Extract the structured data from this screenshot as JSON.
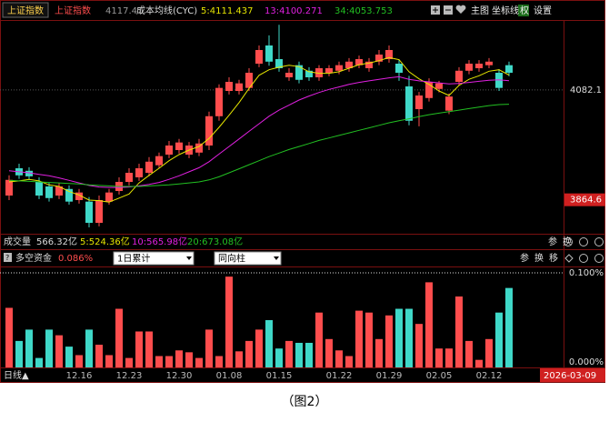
{
  "toolbar": {
    "tag": "上证指数",
    "name": "上证指数",
    "price": 4117.41,
    "buttons": [
      "主图",
      "坐标线",
      "权",
      "设置"
    ]
  },
  "volume_header": {
    "title": "成交量",
    "items": [
      "566.32亿",
      "5:524.36亿",
      "10:565.98亿",
      "20:673.08亿"
    ],
    "tools": [
      "参",
      "换"
    ]
  },
  "money_header": {
    "controls": [
      "1日累计",
      "同向柱"
    ],
    "tools": [
      "参",
      "换",
      "移"
    ]
  },
  "date_axis": {
    "period": "日线▲",
    "end_date": "2026-03-09"
  },
  "caption": "（图2）",
  "chart_data": [
    {
      "type": "candlestick",
      "title": "成本均线(CYC)",
      "up_color": "#ff4d4d",
      "down_color": "#3fd8c8",
      "categories": [
        null,
        null,
        null,
        null,
        null,
        null,
        null,
        "12.16",
        null,
        null,
        null,
        null,
        "12.23",
        null,
        null,
        null,
        null,
        "12.30",
        null,
        null,
        null,
        null,
        "01.08",
        null,
        null,
        null,
        null,
        "01.15",
        null,
        null,
        null,
        null,
        null,
        "01.22",
        null,
        null,
        null,
        null,
        "01.29",
        null,
        null,
        null,
        null,
        "02.05",
        null,
        null,
        null,
        null,
        "02.12",
        null,
        null
      ],
      "open": [
        3873,
        3927,
        3922,
        3900,
        3891,
        3873,
        3886,
        3864,
        3861,
        3819,
        3861,
        3882,
        3900,
        3909,
        3918,
        3933,
        3954,
        3963,
        3954,
        3958,
        3972,
        4030,
        4080,
        4080,
        4086,
        4134,
        4170,
        4143,
        4107,
        4131,
        4120,
        4107,
        4116,
        4120,
        4125,
        4131,
        4125,
        4138,
        4143,
        4134,
        4089,
        4044,
        4066,
        4084,
        4041,
        4098,
        4120,
        4125,
        4131,
        4116,
        4131
      ],
      "high": [
        3913,
        3936,
        3929,
        3909,
        3898,
        3898,
        3893,
        3886,
        3870,
        3873,
        3886,
        3909,
        3927,
        3936,
        3949,
        3958,
        3981,
        3985,
        3979,
        3985,
        4039,
        4093,
        4107,
        4102,
        4125,
        4170,
        4190,
        4211,
        4125,
        4138,
        4127,
        4131,
        4131,
        4138,
        4145,
        4150,
        4145,
        4161,
        4170,
        4141,
        4110,
        4078,
        4105,
        4100,
        4075,
        4127,
        4141,
        4141,
        4145,
        4123,
        4138
      ],
      "low": [
        3864,
        3906,
        3904,
        3866,
        3861,
        3866,
        3855,
        3857,
        3810,
        3812,
        3855,
        3875,
        3893,
        3902,
        3911,
        3927,
        3947,
        3956,
        3947,
        3951,
        3963,
        4021,
        4073,
        4073,
        4080,
        4127,
        4130,
        4118,
        4100,
        4095,
        4100,
        4100,
        4109,
        4113,
        4118,
        4125,
        4118,
        4131,
        4136,
        4100,
        4012,
        4010,
        4059,
        4077,
        4034,
        4091,
        4113,
        4118,
        4125,
        4080,
        4109
      ],
      "close": [
        3904,
        3913,
        3911,
        3873,
        3868,
        3891,
        3861,
        3879,
        3819,
        3864,
        3879,
        3900,
        3918,
        3927,
        3940,
        3951,
        3972,
        3978,
        3972,
        3976,
        4030,
        4086,
        4098,
        4095,
        4116,
        4161,
        4138,
        4125,
        4116,
        4102,
        4107,
        4125,
        4125,
        4131,
        4138,
        4143,
        4138,
        4152,
        4161,
        4116,
        4021,
        4071,
        4098,
        4095,
        4069,
        4120,
        4134,
        4134,
        4138,
        4086,
        4116
      ],
      "series": [
        {
          "name": "5:4111.437",
          "color": "#e6e600",
          "values": [
            3900,
            3902,
            3905,
            3902,
            3894,
            3891,
            3881,
            3874,
            3864,
            3863,
            3860,
            3868,
            3876,
            3898,
            3913,
            3927,
            3942,
            3954,
            3963,
            3970,
            3986,
            4008,
            4032,
            4057,
            4085,
            4111,
            4122,
            4127,
            4131,
            4128,
            4118,
            4115,
            4115,
            4118,
            4125,
            4132,
            4135,
            4140,
            4146,
            4142,
            4118,
            4104,
            4093,
            4080,
            4071,
            4091,
            4103,
            4110,
            4119,
            4122,
            4111.437
          ]
        },
        {
          "name": "13:4100.271",
          "color": "#e020e0",
          "values": [
            3922,
            3920,
            3918,
            3915,
            3912,
            3908,
            3903,
            3898,
            3893,
            3890,
            3889,
            3889,
            3890,
            3892,
            3895,
            3899,
            3905,
            3912,
            3920,
            3928,
            3940,
            3955,
            3970,
            3985,
            4000,
            4015,
            4030,
            4042,
            4052,
            4062,
            4070,
            4077,
            4083,
            4088,
            4093,
            4097,
            4100,
            4103,
            4106,
            4108,
            4103,
            4100,
            4098,
            4096,
            4094,
            4095,
            4097,
            4099,
            4101,
            4102,
            4100.271
          ]
        },
        {
          "name": "34:4053.753",
          "color": "#22c022",
          "values": [
            3903,
            3902,
            3901,
            3900,
            3899,
            3898,
            3897,
            3896,
            3894,
            3893,
            3892,
            3891,
            3891,
            3891,
            3892,
            3893,
            3894,
            3896,
            3898,
            3900,
            3904,
            3910,
            3918,
            3926,
            3934,
            3942,
            3950,
            3957,
            3964,
            3970,
            3976,
            3982,
            3987,
            3992,
            3997,
            4002,
            4007,
            4012,
            4017,
            4021,
            4025,
            4029,
            4033,
            4036,
            4039,
            4042,
            4045,
            4048,
            4051,
            4053,
            4053.753
          ]
        }
      ],
      "ylim": [
        3801,
        4242
      ],
      "yticks": [
        4082.1
      ],
      "price_marker": 3864.6,
      "grid": true
    },
    {
      "type": "bar",
      "title": "多空资金",
      "subtitle": "0.086%",
      "values": [
        0.063,
        0.028,
        0.04,
        0.01,
        0.04,
        0.034,
        0.022,
        0.013,
        0.04,
        0.024,
        0.013,
        0.062,
        0.01,
        0.038,
        0.038,
        0.012,
        0.012,
        0.018,
        0.016,
        0.01,
        0.04,
        0.012,
        0.096,
        0.017,
        0.028,
        0.04,
        0.05,
        0.02,
        0.028,
        0.026,
        0.026,
        0.058,
        0.03,
        0.018,
        0.012,
        0.06,
        0.058,
        0.03,
        0.055,
        0.062,
        0.062,
        0.046,
        0.09,
        0.02,
        0.02,
        0.075,
        0.028,
        0.008,
        0.03,
        0.058,
        0.084
      ],
      "ylim": [
        0,
        0.1
      ],
      "yticks": [
        {
          "value": 0.1,
          "label": "0.100%"
        },
        {
          "value": 0,
          "label": "0.000%"
        }
      ]
    }
  ]
}
